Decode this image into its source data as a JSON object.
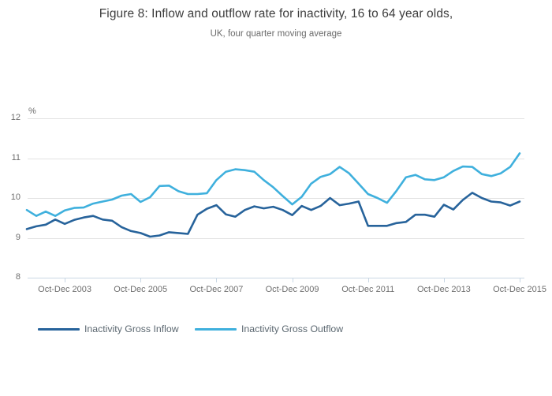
{
  "header": {
    "title": "Figure 8: Inflow and outflow rate for inactivity, 16 to 64 year olds,",
    "subtitle": "UK, four quarter moving average"
  },
  "y_axis": {
    "unit_label": "%",
    "ticks": [
      12,
      11,
      10,
      9,
      8
    ],
    "min": 8,
    "max": 12
  },
  "x_axis": {
    "tick_indices": [
      4,
      12,
      20,
      28,
      36,
      44,
      52
    ],
    "tick_labels": [
      "Oct-Dec 2003",
      "Oct-Dec 2005",
      "Oct-Dec 2007",
      "Oct-Dec 2009",
      "Oct-Dec 2011",
      "Oct-Dec 2013",
      "Oct-Dec 2015"
    ]
  },
  "legend": [
    {
      "label": "Inactivity Gross Inflow",
      "color": "#27639b"
    },
    {
      "label": "Inactivity Gross Outflow",
      "color": "#3fb0dd"
    }
  ],
  "colors": {
    "gridline": "#e2e2e2",
    "axis_line": "#c9d7e4",
    "inflow": "#27639b",
    "outflow": "#3fb0dd"
  },
  "chart_data": {
    "type": "line",
    "title": "Figure 8: Inflow and outflow rate for inactivity, 16 to 64 year olds,",
    "subtitle": "UK, four quarter moving average",
    "ylabel": "%",
    "ylim": [
      8,
      12
    ],
    "grid": true,
    "legend_position": "bottom-left",
    "x": [
      "Oct-Dec 2002",
      "Jan-Mar 2003",
      "Apr-Jun 2003",
      "Jul-Sep 2003",
      "Oct-Dec 2003",
      "Jan-Mar 2004",
      "Apr-Jun 2004",
      "Jul-Sep 2004",
      "Oct-Dec 2004",
      "Jan-Mar 2005",
      "Apr-Jun 2005",
      "Jul-Sep 2005",
      "Oct-Dec 2005",
      "Jan-Mar 2006",
      "Apr-Jun 2006",
      "Jul-Sep 2006",
      "Oct-Dec 2006",
      "Jan-Mar 2007",
      "Apr-Jun 2007",
      "Jul-Sep 2007",
      "Oct-Dec 2007",
      "Jan-Mar 2008",
      "Apr-Jun 2008",
      "Jul-Sep 2008",
      "Oct-Dec 2008",
      "Jan-Mar 2009",
      "Apr-Jun 2009",
      "Jul-Sep 2009",
      "Oct-Dec 2009",
      "Jan-Mar 2010",
      "Apr-Jun 2010",
      "Jul-Sep 2010",
      "Oct-Dec 2010",
      "Jan-Mar 2011",
      "Apr-Jun 2011",
      "Jul-Sep 2011",
      "Oct-Dec 2011",
      "Jan-Mar 2012",
      "Apr-Jun 2012",
      "Jul-Sep 2012",
      "Oct-Dec 2012",
      "Jan-Mar 2013",
      "Apr-Jun 2013",
      "Jul-Sep 2013",
      "Oct-Dec 2013",
      "Jan-Mar 2014",
      "Apr-Jun 2014",
      "Jul-Sep 2014",
      "Oct-Dec 2014",
      "Jan-Mar 2015",
      "Apr-Jun 2015",
      "Jul-Sep 2015",
      "Oct-Dec 2015"
    ],
    "series": [
      {
        "name": "Inactivity Gross Inflow",
        "color": "#27639b",
        "values": [
          9.22,
          9.29,
          9.33,
          9.46,
          9.35,
          9.45,
          9.51,
          9.55,
          9.46,
          9.43,
          9.27,
          9.17,
          9.12,
          9.03,
          9.06,
          9.14,
          9.12,
          9.1,
          9.58,
          9.73,
          9.82,
          9.59,
          9.53,
          9.7,
          9.79,
          9.74,
          9.78,
          9.7,
          9.57,
          9.8,
          9.7,
          9.8,
          10.0,
          9.82,
          9.86,
          9.91,
          9.3,
          9.3,
          9.3,
          9.37,
          9.4,
          9.58,
          9.58,
          9.53,
          9.83,
          9.71,
          9.95,
          10.13,
          10.0,
          9.91,
          9.89,
          9.81,
          9.91
        ]
      },
      {
        "name": "Inactivity Gross Outflow",
        "color": "#3fb0dd",
        "values": [
          9.7,
          9.55,
          9.66,
          9.55,
          9.69,
          9.75,
          9.76,
          9.86,
          9.91,
          9.96,
          10.06,
          10.1,
          9.9,
          10.02,
          10.3,
          10.31,
          10.17,
          10.1,
          10.1,
          10.12,
          10.45,
          10.66,
          10.72,
          10.7,
          10.66,
          10.45,
          10.27,
          10.05,
          9.84,
          10.03,
          10.36,
          10.53,
          10.6,
          10.78,
          10.62,
          10.36,
          10.1,
          10.0,
          9.88,
          10.18,
          10.52,
          10.58,
          10.47,
          10.45,
          10.52,
          10.68,
          10.79,
          10.78,
          10.6,
          10.55,
          10.62,
          10.78,
          11.12
        ]
      }
    ]
  }
}
